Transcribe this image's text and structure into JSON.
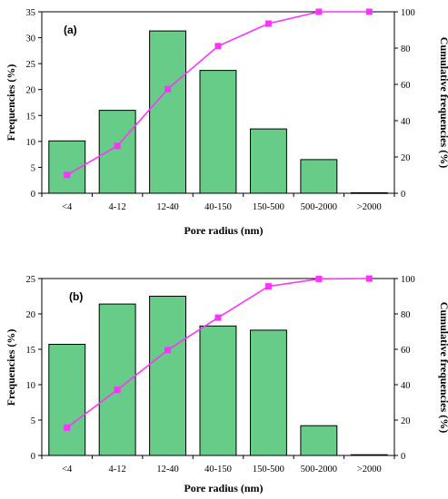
{
  "chart_data": [
    {
      "type": "bar",
      "panel_label": "(a)",
      "categories": [
        "<4",
        "4-12",
        "12-40",
        "40-150",
        "150-500",
        "500-2000",
        ">2000"
      ],
      "xlabel": "Pore radius (nm)",
      "ylabel": "Frequencies  (%)",
      "y2label": "Cumulative frequencies  (%)",
      "ylim": [
        0,
        35
      ],
      "yticks": [
        0,
        5,
        10,
        15,
        20,
        25,
        30,
        35
      ],
      "y2lim": [
        0,
        100
      ],
      "y2ticks": [
        0,
        20,
        40,
        60,
        80,
        100
      ],
      "grid": false,
      "bar_color": "#66cc88",
      "line_color": "#ff33ff",
      "series": [
        {
          "values": [
            10.1,
            16.0,
            31.3,
            23.7,
            12.4,
            6.5,
            0.1
          ]
        },
        {
          "axis": "right",
          "type": "line",
          "values": [
            10.1,
            26.1,
            57.4,
            81.1,
            93.5,
            100,
            100
          ]
        }
      ]
    },
    {
      "type": "bar",
      "panel_label": "(b)",
      "categories": [
        "<4",
        "4-12",
        "12-40",
        "40-150",
        "150-500",
        "500-2000",
        ">2000"
      ],
      "xlabel": "Pore radius (nm)",
      "ylabel": "Frequencies  (%)",
      "y2label": "Cumulative frequencies  (%)",
      "ylim": [
        0,
        25
      ],
      "yticks": [
        0,
        5,
        10,
        15,
        20,
        25
      ],
      "y2lim": [
        0,
        100
      ],
      "y2ticks": [
        0,
        20,
        40,
        60,
        80,
        100
      ],
      "grid": false,
      "bar_color": "#66cc88",
      "line_color": "#ff33ff",
      "series": [
        {
          "values": [
            15.7,
            21.4,
            22.5,
            18.3,
            17.7,
            4.2,
            0.1
          ]
        },
        {
          "axis": "right",
          "type": "line",
          "values": [
            15.7,
            37.1,
            59.6,
            77.9,
            95.6,
            99.8,
            100
          ]
        }
      ]
    }
  ]
}
